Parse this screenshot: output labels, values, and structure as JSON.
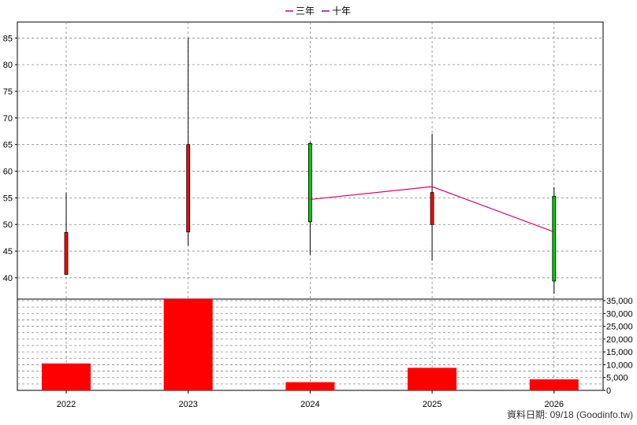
{
  "chart_data": [
    {
      "type": "candlestick",
      "legend": [
        {
          "label": "三年",
          "color": "#e0006f"
        },
        {
          "label": "十年",
          "color": "#7a0aa0"
        }
      ],
      "y_ticks": [
        "40",
        "45",
        "50",
        "55",
        "60",
        "65",
        "70",
        "75",
        "80",
        "85"
      ],
      "ylim": [
        36,
        88
      ],
      "grid": true,
      "categories": [
        "2022",
        "2023",
        "2024",
        "2025",
        "2026"
      ],
      "candles": [
        {
          "x": "2022",
          "open": 48.5,
          "close": 40.6,
          "high": 56.0,
          "low": 40.6,
          "color": "#ff0000"
        },
        {
          "x": "2023",
          "open": 65.0,
          "close": 48.6,
          "high": 85.0,
          "low": 46.0,
          "color": "#ff0000"
        },
        {
          "x": "2024",
          "open": 50.5,
          "close": 65.2,
          "high": 65.5,
          "low": 44.3,
          "color": "#00cc00"
        },
        {
          "x": "2025",
          "open": 56.0,
          "close": 50.0,
          "high": 67.0,
          "low": 43.2,
          "color": "#ff0000"
        },
        {
          "x": "2026",
          "open": 39.4,
          "close": 55.3,
          "high": 57.0,
          "low": 37.0,
          "color": "#00cc00"
        }
      ],
      "three_year_line": [
        {
          "x": "2024",
          "y": 54.7
        },
        {
          "x": "2025",
          "y": 57.1
        },
        {
          "x": "2026",
          "y": 48.6
        }
      ]
    },
    {
      "type": "bar",
      "categories": [
        "2022",
        "2023",
        "2024",
        "2025",
        "2026"
      ],
      "values": [
        10500,
        36000,
        3200,
        8800,
        4300
      ],
      "color": "#ff0000",
      "y_ticks": [
        "0",
        "5,000",
        "10,000",
        "15,000",
        "20,000",
        "25,000",
        "30,000",
        "35,000"
      ],
      "ylim": [
        0,
        35000
      ],
      "grid": true
    }
  ],
  "footer": "資料日期: 09/18 (Goodinfo.tw)"
}
